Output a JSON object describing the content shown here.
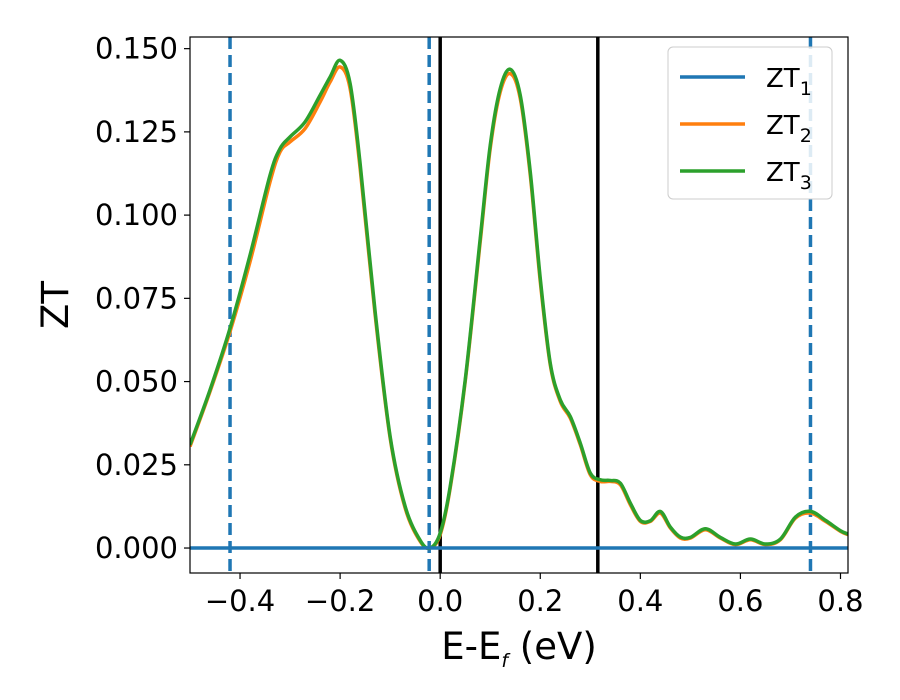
{
  "chart_data": {
    "type": "line",
    "title": "",
    "xlabel": "E-E",
    "xlabel_subscript": "f",
    "xlabel_unit": " (eV)",
    "ylabel": "ZT",
    "xlim": [
      -0.5,
      0.815
    ],
    "ylim": [
      -0.0075,
      0.1535
    ],
    "xticks": [
      -0.4,
      -0.2,
      0.0,
      0.2,
      0.4,
      0.6,
      0.8
    ],
    "xtick_labels": [
      "−0.4",
      "−0.2",
      "0.0",
      "0.2",
      "0.4",
      "0.6",
      "0.8"
    ],
    "yticks": [
      0.0,
      0.025,
      0.05,
      0.075,
      0.1,
      0.125,
      0.15
    ],
    "ytick_labels": [
      "0.000",
      "0.025",
      "0.050",
      "0.075",
      "0.100",
      "0.125",
      "0.150"
    ],
    "grid": false,
    "legend_position": "top-right",
    "vertical_lines": [
      {
        "x": -0.42,
        "style": "dashed",
        "color": "#1f77b4"
      },
      {
        "x": -0.022,
        "style": "dashed",
        "color": "#1f77b4"
      },
      {
        "x": 0.74,
        "style": "dashed",
        "color": "#1f77b4"
      },
      {
        "x": 0.0,
        "style": "solid",
        "color": "#000000"
      },
      {
        "x": 0.315,
        "style": "solid",
        "color": "#000000"
      }
    ],
    "series": [
      {
        "name": "ZT",
        "name_subscript": "1",
        "color": "#1f77b4",
        "x": [
          -0.5,
          0.815
        ],
        "y": [
          0.0,
          0.0
        ]
      },
      {
        "name": "ZT",
        "name_subscript": "2",
        "color": "#ff7f0e",
        "x": [
          -0.5,
          -0.46,
          -0.42,
          -0.38,
          -0.34,
          -0.32,
          -0.3,
          -0.27,
          -0.24,
          -0.22,
          -0.2,
          -0.18,
          -0.16,
          -0.13,
          -0.1,
          -0.07,
          -0.04,
          -0.02,
          0.0,
          0.02,
          0.05,
          0.08,
          0.1,
          0.12,
          0.14,
          0.16,
          0.18,
          0.2,
          0.22,
          0.24,
          0.26,
          0.28,
          0.3,
          0.32,
          0.34,
          0.36,
          0.38,
          0.4,
          0.42,
          0.44,
          0.46,
          0.48,
          0.5,
          0.53,
          0.56,
          0.59,
          0.62,
          0.65,
          0.68,
          0.71,
          0.74,
          0.77,
          0.8,
          0.815
        ],
        "y": [
          0.0305,
          0.047,
          0.065,
          0.086,
          0.11,
          0.119,
          0.122,
          0.126,
          0.134,
          0.14,
          0.1445,
          0.138,
          0.114,
          0.07,
          0.033,
          0.012,
          0.002,
          0.0,
          0.004,
          0.018,
          0.05,
          0.092,
          0.12,
          0.137,
          0.1425,
          0.135,
          0.112,
          0.08,
          0.055,
          0.044,
          0.039,
          0.031,
          0.022,
          0.02,
          0.02,
          0.019,
          0.013,
          0.008,
          0.008,
          0.0105,
          0.006,
          0.003,
          0.003,
          0.0055,
          0.003,
          0.001,
          0.0025,
          0.001,
          0.0025,
          0.009,
          0.0105,
          0.008,
          0.005,
          0.004
        ]
      },
      {
        "name": "ZT",
        "name_subscript": "3",
        "color": "#2ca02c",
        "x": [
          -0.5,
          -0.46,
          -0.42,
          -0.38,
          -0.34,
          -0.32,
          -0.3,
          -0.27,
          -0.24,
          -0.22,
          -0.2,
          -0.18,
          -0.16,
          -0.13,
          -0.1,
          -0.07,
          -0.04,
          -0.02,
          0.0,
          0.02,
          0.05,
          0.08,
          0.1,
          0.12,
          0.14,
          0.16,
          0.18,
          0.2,
          0.22,
          0.24,
          0.26,
          0.28,
          0.3,
          0.32,
          0.34,
          0.36,
          0.38,
          0.4,
          0.42,
          0.44,
          0.46,
          0.48,
          0.5,
          0.53,
          0.56,
          0.59,
          0.62,
          0.65,
          0.68,
          0.71,
          0.74,
          0.77,
          0.8,
          0.815
        ],
        "y": [
          0.031,
          0.0475,
          0.066,
          0.088,
          0.112,
          0.12,
          0.1235,
          0.128,
          0.136,
          0.1415,
          0.1465,
          0.1395,
          0.1155,
          0.071,
          0.0335,
          0.0125,
          0.0023,
          0.0,
          0.0045,
          0.0185,
          0.0505,
          0.093,
          0.121,
          0.138,
          0.1438,
          0.136,
          0.113,
          0.081,
          0.0555,
          0.0445,
          0.0395,
          0.0315,
          0.0225,
          0.0205,
          0.0203,
          0.0195,
          0.0135,
          0.0083,
          0.0082,
          0.011,
          0.0063,
          0.0033,
          0.0032,
          0.0058,
          0.0032,
          0.0012,
          0.0027,
          0.0012,
          0.0027,
          0.0093,
          0.011,
          0.0083,
          0.0052,
          0.0042
        ]
      }
    ]
  }
}
